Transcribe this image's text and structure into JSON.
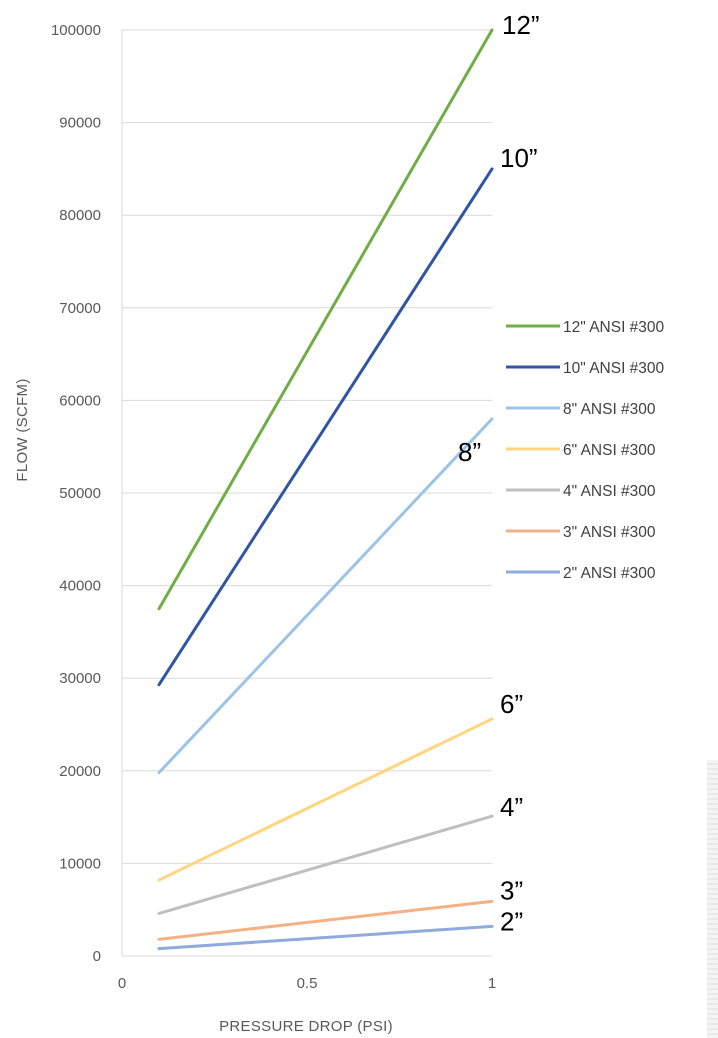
{
  "chart_data": {
    "type": "line",
    "xlabel": "PRESSURE DROP (PSI)",
    "ylabel": "FLOW (SCFM)",
    "xlim": [
      0,
      1
    ],
    "ylim": [
      0,
      100000
    ],
    "x_ticks": [
      "0",
      "0.5",
      "1"
    ],
    "y_ticks": [
      "0",
      "10000",
      "20000",
      "30000",
      "40000",
      "50000",
      "60000",
      "70000",
      "80000",
      "90000",
      "100000"
    ],
    "grid": "horizontal",
    "legend_position": "right",
    "series": [
      {
        "name": "12\" ANSI #300",
        "color": "#70ad47",
        "end_label": "12”",
        "x": [
          0.1,
          1
        ],
        "y": [
          37500,
          100000
        ]
      },
      {
        "name": "10\" ANSI #300",
        "color": "#2f55a4",
        "end_label": "10”",
        "x": [
          0.1,
          1
        ],
        "y": [
          29300,
          85000
        ]
      },
      {
        "name": "8\" ANSI #300",
        "color": "#9dc3e6",
        "end_label": "8”",
        "x": [
          0.1,
          1
        ],
        "y": [
          19800,
          58000
        ]
      },
      {
        "name": "6\" ANSI #300",
        "color": "#ffd57f",
        "end_label": "6”",
        "x": [
          0.1,
          1
        ],
        "y": [
          8200,
          25600
        ]
      },
      {
        "name": "4\" ANSI #300",
        "color": "#bfbfbf",
        "end_label": "4”",
        "x": [
          0.1,
          1
        ],
        "y": [
          4600,
          15100
        ]
      },
      {
        "name": "3\" ANSI #300",
        "color": "#f4b183",
        "end_label": "3”",
        "x": [
          0.1,
          1
        ],
        "y": [
          1800,
          5900
        ]
      },
      {
        "name": "2\" ANSI #300",
        "color": "#8faadc",
        "end_label": "2”",
        "x": [
          0.1,
          1
        ],
        "y": [
          800,
          3200
        ]
      }
    ]
  }
}
